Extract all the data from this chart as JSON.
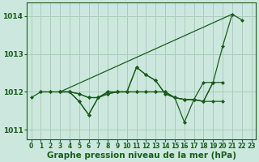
{
  "bg_color": "#cce8de",
  "grid_color": "#aaccbb",
  "line_color": "#1a5c1a",
  "ylim": [
    1010.75,
    1014.35
  ],
  "xlim": [
    -0.5,
    23.5
  ],
  "yticks": [
    1011,
    1012,
    1013,
    1014
  ],
  "xticks": [
    0,
    1,
    2,
    3,
    4,
    5,
    6,
    7,
    8,
    9,
    10,
    11,
    12,
    13,
    14,
    15,
    16,
    17,
    18,
    19,
    20,
    21,
    22,
    23
  ],
  "xlabel": "Graphe pression niveau de la mer (hPa)",
  "series": [
    {
      "x": [
        0,
        1,
        2,
        3,
        4,
        5,
        6,
        7,
        8,
        9,
        10,
        11,
        12,
        13,
        14,
        15,
        16,
        17,
        18,
        19,
        20,
        21,
        22
      ],
      "y": [
        1011.85,
        1012.0,
        1012.0,
        1012.0,
        1012.0,
        1011.75,
        1011.4,
        1011.85,
        1011.95,
        1012.0,
        1012.0,
        1012.65,
        1012.45,
        1012.3,
        1011.95,
        1011.85,
        1011.8,
        1011.8,
        1011.75,
        1012.25,
        1013.2,
        1014.05,
        1013.9
      ],
      "marker": true
    },
    {
      "x": [
        3,
        21
      ],
      "y": [
        1012.0,
        1014.05
      ],
      "marker": false
    },
    {
      "x": [
        3,
        4,
        5,
        6,
        7,
        8,
        9,
        10,
        11,
        12,
        13,
        14,
        15,
        16,
        17,
        18,
        19,
        20
      ],
      "y": [
        1012.0,
        1012.0,
        1011.95,
        1011.85,
        1011.85,
        1012.0,
        1012.0,
        1012.0,
        1012.0,
        1012.0,
        1012.0,
        1012.0,
        1011.85,
        1011.8,
        1011.8,
        1011.75,
        1011.75,
        1011.75
      ],
      "marker": true
    },
    {
      "x": [
        3,
        4,
        5,
        6,
        7,
        8,
        9,
        10,
        11,
        12,
        13,
        14,
        15,
        16,
        17,
        18,
        19,
        20
      ],
      "y": [
        1012.0,
        1012.0,
        1011.95,
        1011.85,
        1011.85,
        1012.0,
        1012.0,
        1012.0,
        1012.0,
        1012.0,
        1012.0,
        1012.0,
        1011.85,
        1011.8,
        1011.8,
        1012.25,
        1012.25,
        1012.25
      ],
      "marker": true
    },
    {
      "x": [
        1,
        2,
        3,
        4,
        5,
        6,
        7,
        8,
        9,
        10,
        11,
        12,
        13,
        14,
        15,
        16,
        17,
        18,
        19
      ],
      "y": [
        1012.0,
        1012.0,
        1012.0,
        1012.0,
        1011.75,
        1011.4,
        1011.85,
        1011.95,
        1012.0,
        1012.0,
        1012.65,
        1012.45,
        1012.3,
        1011.95,
        1011.85,
        1011.2,
        1011.8,
        1011.75,
        1012.25
      ],
      "marker": true
    }
  ],
  "tick_fontsize": 5.5,
  "xlabel_fontsize": 7.5
}
